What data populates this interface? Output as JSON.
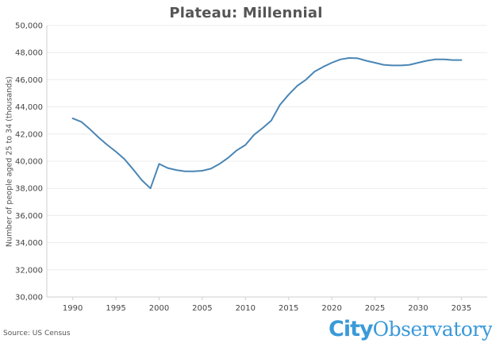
{
  "title": "Plateau: Millennial",
  "source": "Source: US Census",
  "logo": {
    "part1": "City",
    "part2": "Observatory"
  },
  "colors": {
    "line": "#4a86b5",
    "grid": "#ececec",
    "axis": "#cfcfcf",
    "logo": "#3a9ad9"
  },
  "chart_data": {
    "type": "line",
    "title": "Plateau: Millennial",
    "xlabel": "",
    "ylabel": "Number of people aged 25 to 34 (thousands)",
    "xlim": [
      1987,
      2038
    ],
    "ylim": [
      30000,
      50000
    ],
    "x_ticks": [
      1990,
      1995,
      2000,
      2005,
      2010,
      2015,
      2020,
      2025,
      2030,
      2035
    ],
    "y_ticks": [
      30000,
      32000,
      34000,
      36000,
      38000,
      40000,
      42000,
      44000,
      46000,
      48000,
      50000
    ],
    "y_tick_labels": [
      "30,000",
      "32,000",
      "34,000",
      "36,000",
      "38,000",
      "40,000",
      "42,000",
      "44,000",
      "46,000",
      "48,000",
      "50,000"
    ],
    "x_tick_labels": [
      "1990",
      "1995",
      "2000",
      "2005",
      "2010",
      "2015",
      "2020",
      "2025",
      "2030",
      "2035"
    ],
    "grid": true,
    "series": [
      {
        "x": [
          1990,
          1991,
          1992,
          1993,
          1994,
          1995,
          1996,
          1997,
          1998,
          1999,
          2000,
          2001,
          2002,
          2003,
          2004,
          2005,
          2006,
          2007,
          2008,
          2009,
          2010,
          2011,
          2012,
          2013,
          2014,
          2015,
          2016,
          2017,
          2018,
          2019,
          2020,
          2021,
          2022,
          2023,
          2024,
          2025,
          2026,
          2027,
          2028,
          2029,
          2030,
          2031,
          2032,
          2033,
          2034,
          2035
        ],
        "values": [
          43150,
          42900,
          42350,
          41750,
          41200,
          40700,
          40150,
          39400,
          38600,
          38000,
          39800,
          39500,
          39350,
          39250,
          39250,
          39300,
          39450,
          39800,
          40250,
          40800,
          41200,
          41950,
          42450,
          43000,
          44150,
          44900,
          45550,
          46000,
          46600,
          46950,
          47250,
          47500,
          47600,
          47580,
          47400,
          47250,
          47100,
          47050,
          47050,
          47100,
          47250,
          47400,
          47500,
          47500,
          47450,
          47450
        ]
      }
    ]
  }
}
